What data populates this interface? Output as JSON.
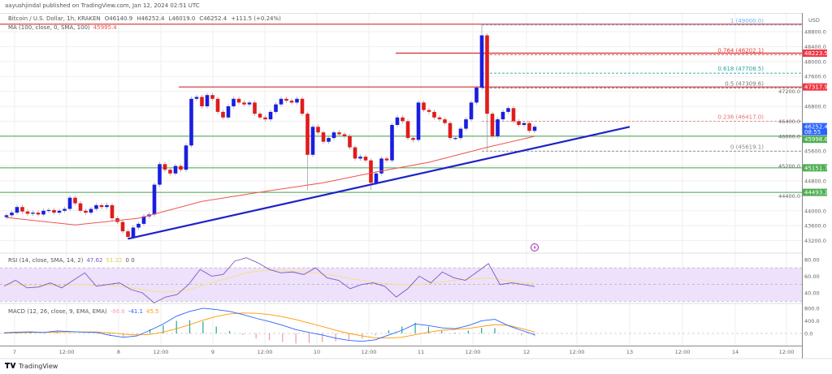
{
  "header": {
    "published": "aayushjindal published on TradingView.com, Jan 12, 2024 02:51 UTC",
    "symbol": "Bitcoin / U.S. Dollar, 1h, KRAKEN",
    "open": "O46140.9",
    "high": "H46252.4",
    "low": "L46019.0",
    "close": "C46252.4",
    "change": "+111.5 (+0.24%)",
    "ma_label": "MA (100, close, 0, SMA, 100)",
    "ma_value": "45995.4"
  },
  "price_axis": {
    "currency": "USD",
    "ticks": [
      "48800.0",
      "48400.0",
      "48000.0",
      "47600.0",
      "47200.0",
      "46800.0",
      "46400.0",
      "46000.0",
      "45600.0",
      "45200.0",
      "44800.0",
      "44400.0",
      "44000.0",
      "43600.0",
      "43200.0"
    ],
    "tick_values": [
      48800,
      48400,
      48000,
      47600,
      47200,
      46800,
      46400,
      46000,
      45600,
      45200,
      44800,
      44400,
      44000,
      43600,
      43200
    ]
  },
  "badges": [
    {
      "label": "48223.5",
      "value": 48223.5,
      "color": "#f23645"
    },
    {
      "label": "47317.9",
      "value": 47317.9,
      "color": "#f23645"
    },
    {
      "label": "46252.4",
      "sub": "08:55",
      "value": 46252.4,
      "color": "#2962ff"
    },
    {
      "label": "45998.6",
      "value": 45998.6,
      "color": "#4caf50"
    },
    {
      "label": "45151.7",
      "value": 45151.7,
      "color": "#4caf50"
    },
    {
      "label": "44493.2",
      "value": 44493.2,
      "color": "#4caf50"
    }
  ],
  "fib_levels": [
    {
      "label": "1 (49000.0)",
      "value": 49000.0,
      "color": "#64b5f6"
    },
    {
      "label": "0.764 (48202.1)",
      "value": 48202.1,
      "color": "#e53935"
    },
    {
      "label": "0.618 (47708.5)",
      "value": 47708.5,
      "color": "#26a69a"
    },
    {
      "label": "0.5 (47309.6)",
      "value": 47309.6,
      "color": "#777777"
    },
    {
      "label": "0.236 (46417.0)",
      "value": 46417.0,
      "color": "#e57373"
    },
    {
      "label": "0 (45619.1)",
      "value": 45619.1,
      "color": "#888888"
    }
  ],
  "resistance_lines": [
    49000,
    48223.5,
    47317.9
  ],
  "support_lines": [
    45998.6,
    45151.7,
    44493.2
  ],
  "trendline": {
    "from": [
      23,
      43250
    ],
    "to": [
      118,
      46250
    ],
    "color": "#1e22c8"
  },
  "colors": {
    "up": "#1a1ee0",
    "down": "#e01b1b",
    "ma": "#ef5350",
    "rsi": "#7e57c2",
    "rsi_sma": "#f5e08a",
    "macd": "#2962ff",
    "signal": "#ff9800"
  },
  "candles_close": [
    43880,
    43950,
    44100,
    43980,
    43920,
    43950,
    43900,
    44000,
    44020,
    43950,
    44000,
    44050,
    44350,
    44200,
    44000,
    43950,
    44050,
    44150,
    44100,
    44150,
    43800,
    43700,
    43450,
    43300,
    43550,
    43650,
    43850,
    43900,
    44700,
    45250,
    45100,
    45000,
    45200,
    45100,
    45750,
    47000,
    47050,
    46800,
    47100,
    47000,
    46650,
    46500,
    46800,
    47000,
    46900,
    46850,
    46900,
    46600,
    46500,
    46450,
    46650,
    46850,
    47000,
    46950,
    46900,
    47000,
    46600,
    45500,
    46250,
    46100,
    45850,
    45950,
    46100,
    46050,
    46000,
    45700,
    45400,
    45450,
    45350,
    44750,
    45000,
    45400,
    45350,
    46300,
    46500,
    46400,
    45950,
    45900,
    46900,
    46700,
    46650,
    46500,
    46450,
    46350,
    45950,
    45950,
    46200,
    46450,
    46900,
    47300,
    48700,
    46600,
    46000,
    46450,
    46650,
    46750,
    46400,
    46300,
    46350,
    46140.9,
    46252.4
  ],
  "ma_points": [
    [
      0,
      43820
    ],
    [
      13,
      43620
    ],
    [
      25,
      43800
    ],
    [
      37,
      44250
    ],
    [
      49,
      44520
    ],
    [
      60,
      44750
    ],
    [
      70,
      45040
    ],
    [
      80,
      45300
    ],
    [
      91,
      45700
    ],
    [
      100,
      45995.4
    ]
  ],
  "rsi": {
    "label": "RSI (14, close, SMA, 14, 2)",
    "value": "47.62",
    "sma_value": "51.22",
    "extra": "0  0",
    "ticks": [
      "80.00",
      "60.00",
      "40.00"
    ],
    "values": [
      48,
      55,
      46,
      47,
      52,
      46,
      55,
      64,
      48,
      50,
      52,
      44,
      40,
      28,
      35,
      38,
      50,
      68,
      60,
      62,
      78,
      82,
      76,
      68,
      64,
      65,
      62,
      70,
      58,
      55,
      45,
      50,
      52,
      48,
      35,
      45,
      60,
      52,
      65,
      58,
      55,
      65,
      75,
      50,
      52,
      50,
      47.62
    ],
    "sma": [
      50,
      50,
      49,
      49,
      49,
      49,
      50,
      50,
      49,
      49,
      48,
      46,
      44,
      42,
      41,
      42,
      44,
      48,
      52,
      56,
      60,
      64,
      66,
      67,
      67,
      66,
      65,
      64,
      62,
      60,
      57,
      55,
      53,
      51,
      50,
      50,
      50,
      51,
      53,
      55,
      56,
      57,
      58,
      56,
      54,
      52,
      51.22
    ]
  },
  "macd": {
    "label": "MACD (12, 26, close, 9, EMA, EMA)",
    "hist_value": "-86.6",
    "macd_value": "-41.1",
    "signal_value": "45.5",
    "ticks": [
      "800.0",
      "400.0",
      "0.0"
    ],
    "macd": [
      20,
      40,
      50,
      30,
      80,
      60,
      40,
      30,
      -60,
      -120,
      -80,
      100,
      300,
      550,
      700,
      800,
      760,
      700,
      600,
      480,
      380,
      260,
      120,
      30,
      -50,
      -150,
      -220,
      -250,
      -200,
      -50,
      100,
      300,
      250,
      180,
      150,
      250,
      400,
      450,
      250,
      100,
      -41.1
    ],
    "signal": [
      10,
      20,
      30,
      35,
      45,
      50,
      48,
      45,
      20,
      -20,
      -50,
      -30,
      40,
      150,
      280,
      420,
      540,
      620,
      650,
      640,
      600,
      530,
      440,
      330,
      220,
      100,
      0,
      -80,
      -140,
      -150,
      -120,
      -40,
      40,
      100,
      130,
      160,
      220,
      280,
      260,
      160,
      45.5
    ]
  },
  "time_axis": [
    "7",
    "12:00",
    "8",
    "12:00",
    "9",
    "12:00",
    "10",
    "12:00",
    "11",
    "12:00",
    "12",
    "12:00",
    "13",
    "12:00",
    "14",
    "12:00"
  ],
  "footer": {
    "brand": "TradingView"
  }
}
